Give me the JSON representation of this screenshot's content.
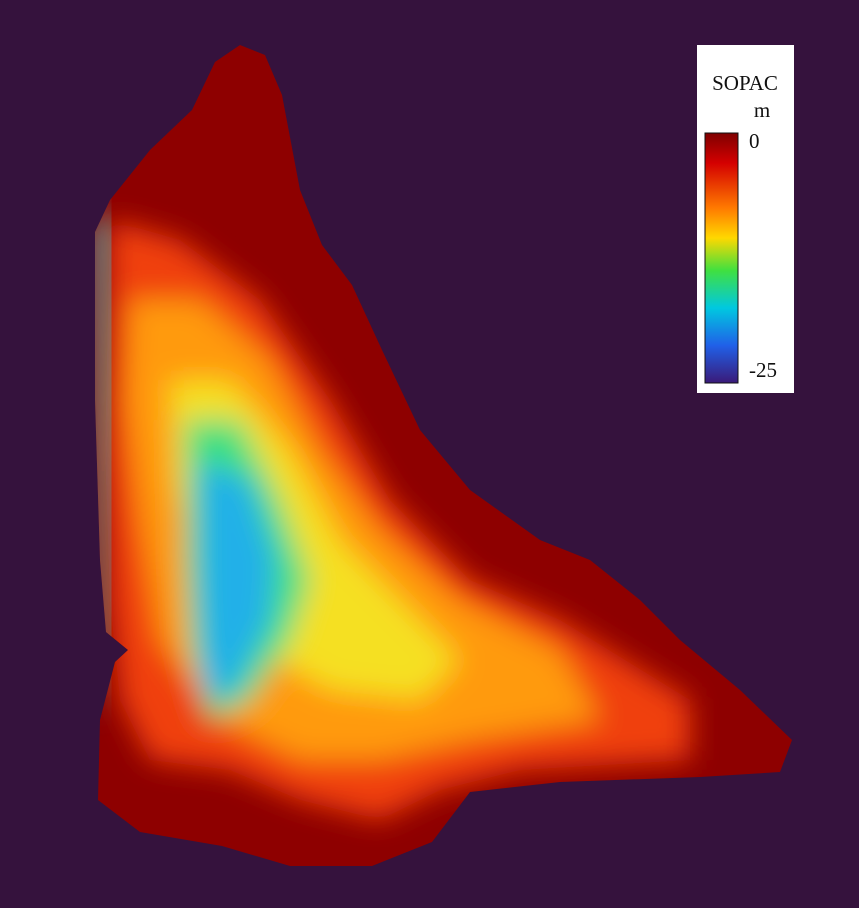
{
  "legend": {
    "title": "SOPAC",
    "unit": "m",
    "max": 0,
    "min": -25
  }
}
